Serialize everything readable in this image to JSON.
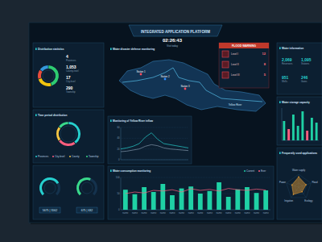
{
  "header": {
    "title": "INTEGRATED APPLICATION PLATFORM",
    "time": "02:26:43",
    "visit": "Visit today"
  },
  "map": {
    "title": "Water disaster defense monitoring",
    "markers": [
      {
        "label": "Station 1"
      },
      {
        "label": "Station 2"
      },
      {
        "label": "Station 3"
      }
    ],
    "river_label": "Yellow River"
  },
  "flood_warning": {
    "title": "FLOOD WARNING",
    "items": [
      {
        "label": "Level I",
        "value": "12"
      },
      {
        "label": "Level II",
        "value": "8"
      },
      {
        "label": "Level III",
        "value": "5"
      }
    ]
  },
  "distribution_stats": [
    {
      "value": "4",
      "label": "Provinces"
    },
    {
      "value": "1,053",
      "label": "County-level"
    },
    {
      "value": "17",
      "label": "City-level"
    },
    {
      "value": "290",
      "label": "Township"
    }
  ],
  "gauge_readouts": [
    "5675 | 5562",
    "675 | 632"
  ],
  "water_info": {
    "title": "Water information",
    "stats": [
      {
        "value": "2,069",
        "label": "Reservoirs"
      },
      {
        "value": "1,095",
        "label": "Stations"
      },
      {
        "value": "951",
        "label": "Wells"
      },
      {
        "value": "246",
        "label": "Gates"
      }
    ]
  },
  "chart_data": [
    {
      "type": "donut",
      "title": "Distribution statistics",
      "values": [
        45,
        25,
        15,
        15
      ],
      "colors": [
        "#2ecc71",
        "#f1c40f",
        "#e74c3c",
        "#3498db"
      ]
    },
    {
      "type": "donut",
      "title": "Time period distribution",
      "categories": [
        "Provinces",
        "City-level",
        "County",
        "Township"
      ],
      "values": [
        40,
        25,
        20,
        15
      ],
      "colors": [
        "#26d0ce",
        "#ff5e7e",
        "#f5c542",
        "#39d98a"
      ],
      "legend": "bottom"
    },
    {
      "type": "gauge",
      "ylim": [
        0,
        100
      ],
      "values": [
        72,
        58
      ],
      "colors": [
        "#26d0ce",
        "#39d98a"
      ]
    },
    {
      "type": "line",
      "title": "Monitoring of Yellow River inflow",
      "x": [
        1,
        2,
        3,
        4,
        5,
        6,
        7,
        8,
        9,
        10,
        11,
        12
      ],
      "xlim": [
        1,
        12
      ],
      "ylim": [
        0,
        60
      ],
      "yticks": [
        0,
        20,
        40,
        60
      ],
      "tick_labels": "y",
      "grid": true,
      "series": [
        {
          "color": "#26d0ce",
          "values": [
            20,
            22,
            25,
            30,
            42,
            50,
            38,
            30,
            28,
            26,
            24,
            22
          ]
        },
        {
          "color": "#7f93a8",
          "values": [
            15,
            16,
            18,
            20,
            25,
            28,
            26,
            22,
            20,
            19,
            18,
            17
          ]
        }
      ]
    },
    {
      "type": "bar",
      "title": "Water consumption monitoring",
      "categories": [
        "name",
        "name",
        "name",
        "name",
        "name",
        "name",
        "name",
        "name",
        "name",
        "name",
        "name",
        "name",
        "name",
        "name",
        "name",
        "name"
      ],
      "ylim": [
        0,
        100
      ],
      "yticks": [
        0,
        50,
        100
      ],
      "grid": true,
      "legend": "top-right",
      "series": [
        {
          "name": "Current",
          "color": "#1fd1a5",
          "values": [
            62,
            48,
            70,
            55,
            80,
            45,
            66,
            72,
            50,
            58,
            85,
            40,
            63,
            70,
            52,
            60
          ]
        },
        {
          "name": "Ever",
          "type": "line",
          "color": "#ff5e7e",
          "values": [
            50,
            55,
            52,
            60,
            58,
            62,
            55,
            65,
            60,
            63,
            58,
            66,
            62,
            60,
            64,
            61
          ]
        }
      ]
    },
    {
      "type": "bar",
      "title": "Water storage capacity",
      "categories": [
        null,
        null,
        null,
        null,
        null,
        null,
        null,
        null
      ],
      "ylim": [
        0,
        100
      ],
      "tick_labels": false,
      "values": [
        60,
        35,
        80,
        45,
        90,
        30,
        70,
        55
      ],
      "colors": [
        "#1fd1a5",
        "#ff5e7e",
        "#1fd1a5",
        "#1fd1a5",
        "#1fd1a5",
        "#ff5e7e",
        "#1fd1a5",
        "#1fd1a5"
      ]
    },
    {
      "type": "radar",
      "title": "Frequently used applications",
      "categories": [
        "Water supply",
        "Flood",
        "Ecology",
        "Irrigation",
        "Power"
      ],
      "ylim": [
        0,
        100
      ],
      "values": [
        80,
        60,
        45,
        70,
        55
      ],
      "color": "#f0a030"
    }
  ]
}
